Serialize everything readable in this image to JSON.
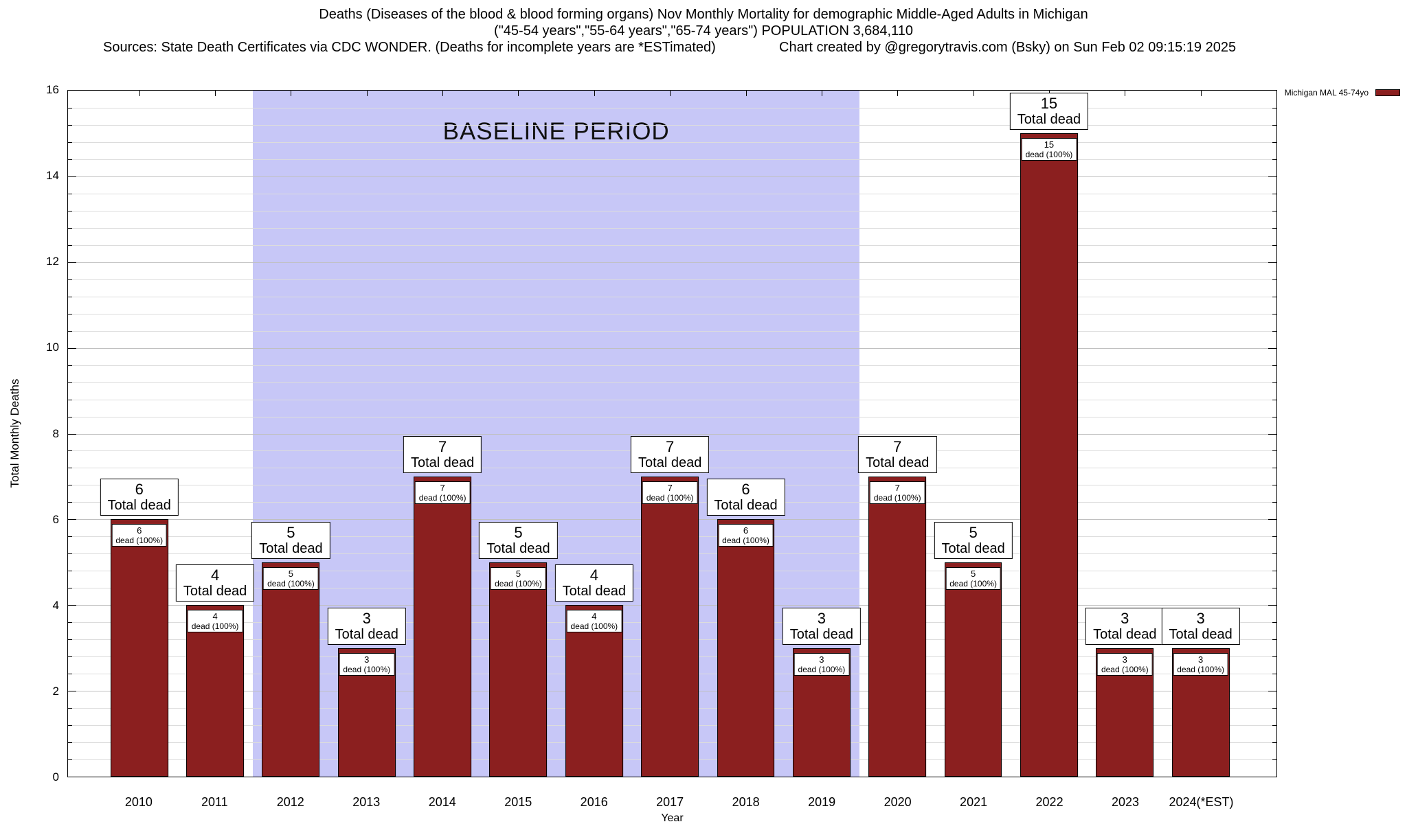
{
  "header": {
    "title": "Deaths (Diseases of the blood & blood forming organs) Nov Monthly Mortality for demographic Middle-Aged Adults in Michigan",
    "subtitle": "(\"45-54 years\",\"55-64 years\",\"65-74 years\") POPULATION 3,684,110",
    "sources": "Sources: State Death Certificates via CDC WONDER. (Deaths for incomplete years are *ESTimated)",
    "credit": "Chart created by @gregorytravis.com (Bsky) on Sun Feb 02 09:15:19 2025"
  },
  "chart_data": {
    "type": "bar",
    "title": "Deaths (Diseases of the blood & blood forming organs) Nov Monthly Mortality for demographic Middle-Aged Adults in Michigan",
    "subtitle": "(\"45-54 years\",\"55-64 years\",\"65-74 years\") POPULATION 3,684,110",
    "categories": [
      "2010",
      "2011",
      "2012",
      "2013",
      "2014",
      "2015",
      "2016",
      "2017",
      "2018",
      "2019",
      "2020",
      "2021",
      "2022",
      "2023",
      "2024(*EST)"
    ],
    "values": [
      6,
      4,
      5,
      3,
      7,
      5,
      4,
      7,
      6,
      3,
      7,
      5,
      15,
      3,
      3
    ],
    "bar_top_label_suffix": "Total dead",
    "bar_inner_label_suffix": "dead (100%)",
    "xlabel": "Year",
    "ylabel": "Total Monthly Deaths",
    "ylim": [
      0,
      16
    ],
    "ytick_step": 2,
    "y_minor_step": 0.4,
    "grid": true,
    "legend": {
      "position": "top-right",
      "entries": [
        {
          "label": "Michigan MAL 45-74yo",
          "color": "#8b1f1f"
        }
      ]
    },
    "baseline_band": {
      "label": "BASELINE PERIOD",
      "start_category": "2012",
      "end_category": "2019",
      "color": "#c7c7f7"
    },
    "colors": {
      "bar": "#8b1f1f",
      "bar_border": "#000000",
      "grid_major": "#c0c0c0",
      "grid_minor": "#dcdcdc"
    }
  }
}
